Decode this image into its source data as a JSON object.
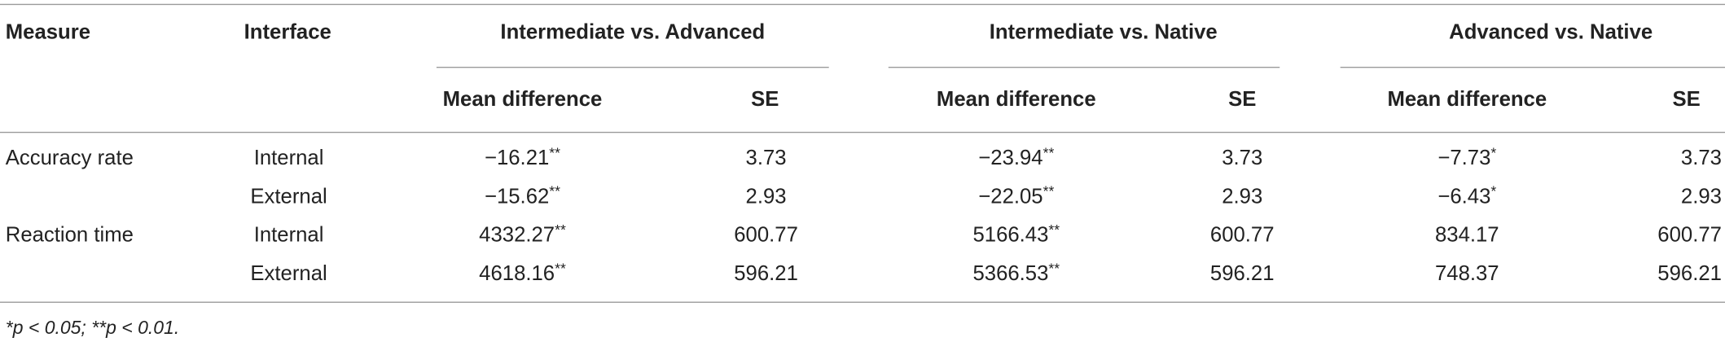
{
  "table": {
    "header": {
      "measure": "Measure",
      "interface": "Interface",
      "groups": [
        "Intermediate vs. Advanced",
        "Intermediate vs. Native",
        "Advanced vs. Native"
      ],
      "subheaders": [
        "Mean difference",
        "SE",
        "Mean difference",
        "SE",
        "Mean difference",
        "SE"
      ]
    },
    "rows": [
      {
        "measure": "Accuracy rate",
        "interface": "Internal",
        "cells": [
          "−16.21**",
          3.73,
          "−23.94**",
          3.73,
          "−7.73*",
          3.73
        ]
      },
      {
        "interface": "External",
        "cells": [
          "−15.62**",
          2.93,
          "−22.05**",
          2.93,
          "−6.43*",
          2.93
        ]
      },
      {
        "measure": "Reaction time",
        "interface": "Internal",
        "cells": [
          "4332.27**",
          600.77,
          "5166.43**",
          600.77,
          834.17,
          600.77
        ]
      },
      {
        "interface": "External",
        "cells": [
          "4618.16**",
          596.21,
          "5366.53**",
          596.21,
          748.37,
          596.21
        ]
      }
    ],
    "footnote": "*p < 0.05; **p < 0.01."
  }
}
